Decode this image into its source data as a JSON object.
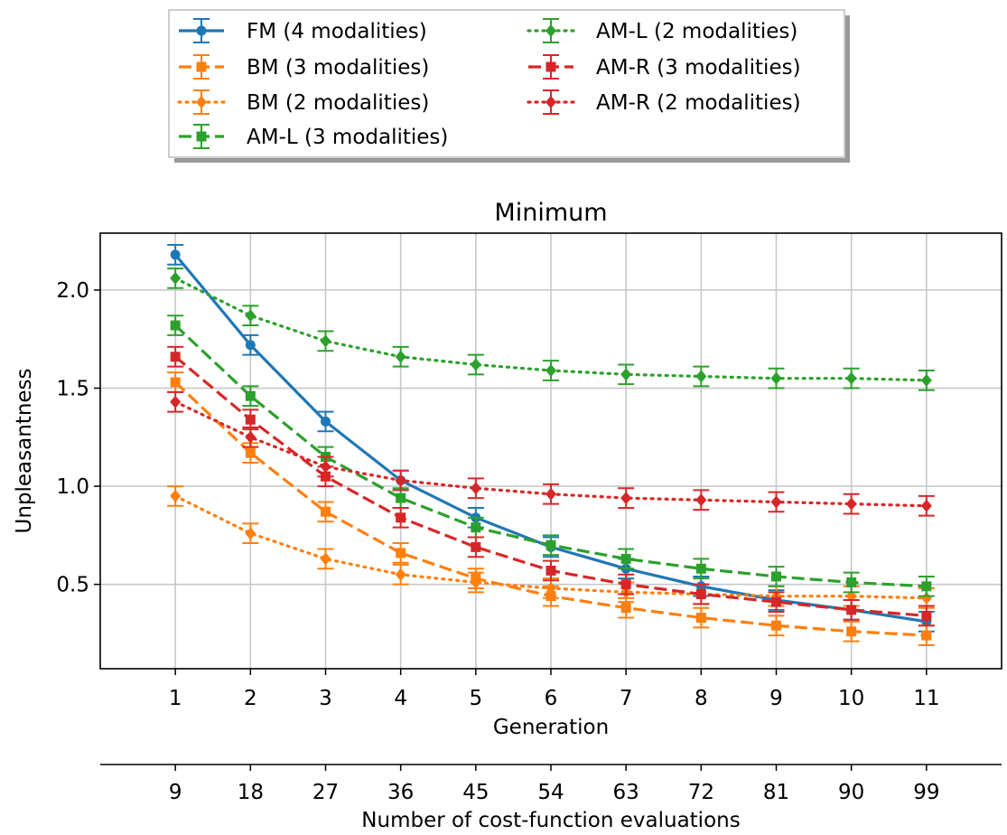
{
  "chart_data": {
    "type": "line",
    "title": "Minimum",
    "xlabel": "Generation",
    "xlabel2": "Number of cost-function evaluations",
    "ylabel": "Unpleasantness",
    "x": [
      1,
      2,
      3,
      4,
      5,
      6,
      7,
      8,
      9,
      10,
      11
    ],
    "xticks": [
      "1",
      "2",
      "3",
      "4",
      "5",
      "6",
      "7",
      "8",
      "9",
      "10",
      "11"
    ],
    "xticks2": [
      "9",
      "18",
      "27",
      "36",
      "45",
      "54",
      "63",
      "72",
      "81",
      "90",
      "99"
    ],
    "yticks": [
      "0.5",
      "1.0",
      "1.5",
      "2.0"
    ],
    "ytick_values": [
      0.5,
      1.0,
      1.5,
      2.0
    ],
    "xlim": [
      0,
      12
    ],
    "ylim": [
      0.07,
      2.29
    ],
    "grid": true,
    "legend_position": "above plot, two columns",
    "series": [
      {
        "name": "FM (4 modalities)",
        "color": "#1f77b4",
        "line": "solid",
        "marker": "circle",
        "values": [
          2.18,
          1.72,
          1.33,
          1.03,
          0.84,
          0.69,
          0.58,
          0.49,
          0.42,
          0.37,
          0.31
        ],
        "errors": [
          0.05,
          0.05,
          0.05,
          0.05,
          0.05,
          0.05,
          0.05,
          0.05,
          0.05,
          0.05,
          0.05
        ]
      },
      {
        "name": "BM (3 modalities)",
        "color": "#ff7f0e",
        "line": "dashed",
        "marker": "square",
        "values": [
          1.53,
          1.17,
          0.87,
          0.66,
          0.53,
          0.44,
          0.38,
          0.33,
          0.29,
          0.26,
          0.24
        ],
        "errors": [
          0.05,
          0.05,
          0.05,
          0.05,
          0.05,
          0.05,
          0.05,
          0.05,
          0.05,
          0.05,
          0.05
        ]
      },
      {
        "name": "BM (2 modalities)",
        "color": "#ff7f0e",
        "line": "dotted",
        "marker": "diamond",
        "values": [
          0.95,
          0.76,
          0.63,
          0.55,
          0.51,
          0.48,
          0.46,
          0.45,
          0.44,
          0.44,
          0.43
        ],
        "errors": [
          0.05,
          0.05,
          0.05,
          0.05,
          0.05,
          0.05,
          0.05,
          0.05,
          0.05,
          0.05,
          0.05
        ]
      },
      {
        "name": "AM-L (3 modalities)",
        "color": "#2ca02c",
        "line": "dashed",
        "marker": "square",
        "values": [
          1.82,
          1.46,
          1.15,
          0.94,
          0.79,
          0.7,
          0.63,
          0.58,
          0.54,
          0.51,
          0.49
        ],
        "errors": [
          0.05,
          0.05,
          0.05,
          0.05,
          0.05,
          0.05,
          0.05,
          0.05,
          0.05,
          0.05,
          0.05
        ]
      },
      {
        "name": "AM-L (2 modalities)",
        "color": "#2ca02c",
        "line": "dotted",
        "marker": "diamond",
        "values": [
          2.06,
          1.87,
          1.74,
          1.66,
          1.62,
          1.59,
          1.57,
          1.56,
          1.55,
          1.55,
          1.54
        ],
        "errors": [
          0.05,
          0.05,
          0.05,
          0.05,
          0.05,
          0.05,
          0.05,
          0.05,
          0.05,
          0.05,
          0.05
        ]
      },
      {
        "name": "AM-R (3 modalities)",
        "color": "#d62728",
        "line": "dashed",
        "marker": "square",
        "values": [
          1.66,
          1.34,
          1.05,
          0.84,
          0.69,
          0.57,
          0.5,
          0.45,
          0.41,
          0.37,
          0.34
        ],
        "errors": [
          0.05,
          0.05,
          0.05,
          0.05,
          0.05,
          0.05,
          0.05,
          0.05,
          0.05,
          0.05,
          0.05
        ]
      },
      {
        "name": "AM-R (2 modalities)",
        "color": "#d62728",
        "line": "dotted",
        "marker": "diamond",
        "values": [
          1.43,
          1.25,
          1.1,
          1.03,
          0.99,
          0.96,
          0.94,
          0.93,
          0.92,
          0.91,
          0.9
        ],
        "errors": [
          0.05,
          0.05,
          0.05,
          0.05,
          0.05,
          0.05,
          0.05,
          0.05,
          0.05,
          0.05,
          0.05
        ]
      }
    ]
  }
}
